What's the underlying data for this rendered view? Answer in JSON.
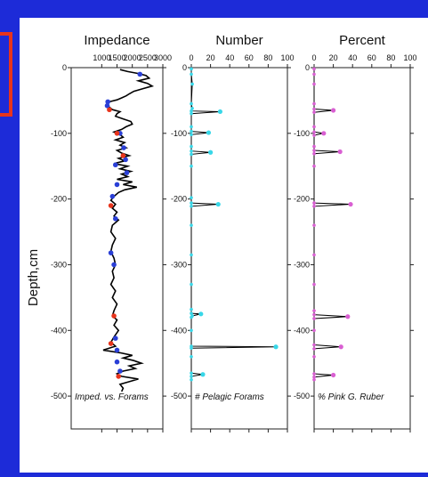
{
  "figure": {
    "y_axis_label": "Depth,cm",
    "background_color": "#1d2bd8",
    "frame_color": "#e8341c"
  },
  "chart_data": [
    {
      "type": "line",
      "title": "Impedance",
      "note": "Imped. vs. Forams",
      "xlim": [
        0,
        3000
      ],
      "x_ticks": [
        1000,
        1500,
        2000,
        2500,
        3000
      ],
      "ylim": [
        0,
        -550
      ],
      "y_ticks": [
        0,
        -100,
        -200,
        -300,
        -400,
        -500
      ],
      "line_color": "#000000",
      "series": [
        {
          "name": "impedance_trace",
          "points": [
            [
              1600,
              -3
            ],
            [
              1850,
              -6
            ],
            [
              2200,
              -9
            ],
            [
              2450,
              -12
            ],
            [
              2550,
              -16
            ],
            [
              2200,
              -20
            ],
            [
              2500,
              -24
            ],
            [
              2650,
              -28
            ],
            [
              2350,
              -32
            ],
            [
              2050,
              -36
            ],
            [
              1900,
              -40
            ],
            [
              1800,
              -43
            ],
            [
              1650,
              -46
            ],
            [
              1500,
              -49
            ],
            [
              1250,
              -52
            ],
            [
              1150,
              -56
            ],
            [
              1250,
              -60
            ],
            [
              1350,
              -64
            ],
            [
              1600,
              -67
            ],
            [
              1500,
              -70
            ],
            [
              1450,
              -74
            ],
            [
              1700,
              -78
            ],
            [
              1950,
              -82
            ],
            [
              2000,
              -86
            ],
            [
              1800,
              -90
            ],
            [
              1650,
              -94
            ],
            [
              1400,
              -98
            ],
            [
              1600,
              -102
            ],
            [
              1700,
              -106
            ],
            [
              1450,
              -110
            ],
            [
              1750,
              -114
            ],
            [
              1600,
              -118
            ],
            [
              1800,
              -122
            ],
            [
              1500,
              -126
            ],
            [
              1650,
              -130
            ],
            [
              1900,
              -134
            ],
            [
              1550,
              -138
            ],
            [
              1750,
              -142
            ],
            [
              1400,
              -146
            ],
            [
              1850,
              -150
            ],
            [
              1600,
              -154
            ],
            [
              1950,
              -158
            ],
            [
              1650,
              -162
            ],
            [
              1850,
              -166
            ],
            [
              1500,
              -170
            ],
            [
              2000,
              -174
            ],
            [
              1700,
              -178
            ],
            [
              2150,
              -182
            ],
            [
              1750,
              -186
            ],
            [
              1550,
              -190
            ],
            [
              1400,
              -196
            ],
            [
              1300,
              -202
            ],
            [
              1450,
              -208
            ],
            [
              1350,
              -214
            ],
            [
              1500,
              -220
            ],
            [
              1400,
              -226
            ],
            [
              1550,
              -232
            ],
            [
              1350,
              -240
            ],
            [
              1300,
              -250
            ],
            [
              1450,
              -260
            ],
            [
              1350,
              -270
            ],
            [
              1300,
              -280
            ],
            [
              1400,
              -290
            ],
            [
              1450,
              -300
            ],
            [
              1350,
              -310
            ],
            [
              1400,
              -320
            ],
            [
              1300,
              -330
            ],
            [
              1450,
              -340
            ],
            [
              1350,
              -350
            ],
            [
              1500,
              -360
            ],
            [
              1400,
              -370
            ],
            [
              1350,
              -378
            ],
            [
              1500,
              -384
            ],
            [
              1400,
              -392
            ],
            [
              1550,
              -400
            ],
            [
              1400,
              -410
            ],
            [
              1300,
              -418
            ],
            [
              1450,
              -424
            ],
            [
              1050,
              -430
            ],
            [
              1600,
              -434
            ],
            [
              2000,
              -438
            ],
            [
              1700,
              -442
            ],
            [
              2050,
              -446
            ],
            [
              2300,
              -450
            ],
            [
              1900,
              -454
            ],
            [
              2100,
              -458
            ],
            [
              1700,
              -462
            ],
            [
              1500,
              -466
            ],
            [
              1650,
              -470
            ],
            [
              2200,
              -474
            ],
            [
              1900,
              -478
            ],
            [
              1600,
              -482
            ],
            [
              1700,
              -488
            ],
            [
              1650,
              -493
            ]
          ]
        },
        {
          "name": "blue_markers",
          "color": "#2a3fd6",
          "points": [
            [
              2250,
              -10
            ],
            [
              1200,
              -52
            ],
            [
              1180,
              -58
            ],
            [
              1600,
              -100
            ],
            [
              1720,
              -122
            ],
            [
              1780,
              -140
            ],
            [
              1450,
              -148
            ],
            [
              1820,
              -160
            ],
            [
              1500,
              -178
            ],
            [
              1350,
              -196
            ],
            [
              1450,
              -230
            ],
            [
              1300,
              -282
            ],
            [
              1400,
              -300
            ],
            [
              1450,
              -412
            ],
            [
              1500,
              -430
            ],
            [
              1500,
              -448
            ],
            [
              1600,
              -462
            ]
          ]
        },
        {
          "name": "red_markers",
          "color": "#e8341c",
          "points": [
            [
              1250,
              -64
            ],
            [
              1500,
              -100
            ],
            [
              1700,
              -134
            ],
            [
              1300,
              -210
            ],
            [
              1400,
              -378
            ],
            [
              1300,
              -420
            ],
            [
              1550,
              -470
            ]
          ]
        }
      ]
    },
    {
      "type": "line",
      "title": "Number",
      "note": "# Pelagic Forams",
      "xlim": [
        0,
        100
      ],
      "x_ticks": [
        0,
        20,
        40,
        60,
        80,
        100
      ],
      "ylim": [
        0,
        -550
      ],
      "y_ticks": [
        0,
        -100,
        -200,
        -300,
        -400,
        -500
      ],
      "line_color": "#000000",
      "marker_color": "#38d7e8",
      "series": [
        {
          "name": "pelagic_forams",
          "points": [
            [
              0,
              -2
            ],
            [
              0,
              -10
            ],
            [
              1,
              -25
            ],
            [
              0,
              -55
            ],
            [
              1,
              -62
            ],
            [
              0,
              -66
            ],
            [
              30,
              -67
            ],
            [
              0,
              -70
            ],
            [
              0,
              -90
            ],
            [
              0,
              -97
            ],
            [
              18,
              -99
            ],
            [
              0,
              -102
            ],
            [
              0,
              -120
            ],
            [
              0,
              -127
            ],
            [
              20,
              -129
            ],
            [
              0,
              -132
            ],
            [
              0,
              -150
            ],
            [
              0,
              -198
            ],
            [
              0,
              -206
            ],
            [
              28,
              -208
            ],
            [
              0,
              -211
            ],
            [
              0,
              -240
            ],
            [
              0,
              -285
            ],
            [
              0,
              -330
            ],
            [
              0,
              -368
            ],
            [
              0,
              -374
            ],
            [
              10,
              -375
            ],
            [
              1,
              -378
            ],
            [
              0,
              -380
            ],
            [
              0,
              -400
            ],
            [
              0,
              -424
            ],
            [
              88,
              -425
            ],
            [
              0,
              -427
            ],
            [
              0,
              -440
            ],
            [
              0,
              -465
            ],
            [
              12,
              -467
            ],
            [
              0,
              -470
            ],
            [
              0,
              -475
            ]
          ]
        }
      ]
    },
    {
      "type": "line",
      "title": "Percent",
      "note": "% Pink G. Ruber",
      "xlim": [
        0,
        100
      ],
      "x_ticks": [
        0,
        20,
        40,
        60,
        80,
        100
      ],
      "ylim": [
        0,
        -550
      ],
      "y_ticks": [
        0,
        -100,
        -200,
        -300,
        -400,
        -500
      ],
      "line_color": "#000000",
      "marker_color": "#d95fd2",
      "series": [
        {
          "name": "pink_g_ruber",
          "points": [
            [
              0,
              -2
            ],
            [
              0,
              -10
            ],
            [
              0,
              -25
            ],
            [
              0,
              -55
            ],
            [
              0,
              -63
            ],
            [
              20,
              -65
            ],
            [
              0,
              -68
            ],
            [
              0,
              -90
            ],
            [
              0,
              -98
            ],
            [
              10,
              -100
            ],
            [
              0,
              -103
            ],
            [
              0,
              -120
            ],
            [
              0,
              -126
            ],
            [
              27,
              -128
            ],
            [
              0,
              -131
            ],
            [
              0,
              -150
            ],
            [
              0,
              -206
            ],
            [
              38,
              -208
            ],
            [
              0,
              -211
            ],
            [
              0,
              -240
            ],
            [
              0,
              -285
            ],
            [
              0,
              -330
            ],
            [
              0,
              -370
            ],
            [
              0,
              -376
            ],
            [
              35,
              -379
            ],
            [
              0,
              -382
            ],
            [
              0,
              -400
            ],
            [
              0,
              -422
            ],
            [
              28,
              -425
            ],
            [
              0,
              -428
            ],
            [
              0,
              -440
            ],
            [
              0,
              -466
            ],
            [
              20,
              -468
            ],
            [
              0,
              -471
            ],
            [
              0,
              -475
            ]
          ]
        }
      ]
    }
  ]
}
